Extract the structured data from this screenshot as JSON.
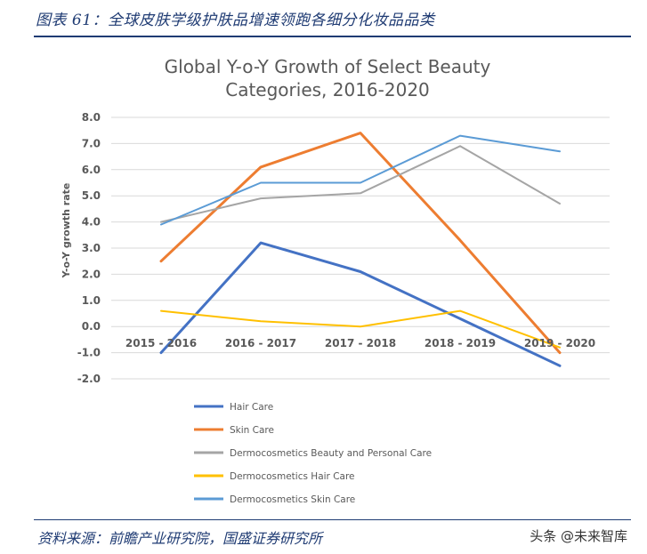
{
  "caption": "图表 61：全球皮肤学级护肤品增速领跑各细分化妆品品类",
  "source": "资料来源：前瞻产业研究院，国盛证券研究所",
  "watermark": "头条 @未来智库",
  "colors": {
    "Hair Care": "#4472c4",
    "Skin Care": "#ed7d31",
    "Dermocosmetics Beauty and Personal Care": "#a5a5a5",
    "Dermocosmetics Hair Care": "#ffc000",
    "Dermocosmetics Skin Care": "#5b9bd5",
    "grid": "#d9d9d9",
    "text": "#595959"
  },
  "chart_data": {
    "type": "line",
    "title_lines": [
      "Global Y-o-Y Growth of Select Beauty",
      "Categories, 2016-2020"
    ],
    "ylabel": "Y-o-Y growth rate",
    "xlabel": "",
    "ylim": [
      -2.0,
      8.0
    ],
    "ytick_step": 1.0,
    "ytick_labels": [
      "8.0",
      "7.0",
      "6.0",
      "5.0",
      "4.0",
      "3.0",
      "2.0",
      "1.0",
      "0.0",
      "-1.0",
      "-2.0"
    ],
    "grid": true,
    "legend_position": "bottom",
    "categories": [
      "2015 - 2016",
      "2016 - 2017",
      "2017 - 2018",
      "2018 - 2019",
      "2019 - 2020"
    ],
    "series": [
      {
        "name": "Hair Care",
        "values": [
          -1.0,
          3.2,
          2.1,
          0.3,
          -1.5
        ]
      },
      {
        "name": "Skin Care",
        "values": [
          2.5,
          6.1,
          7.4,
          3.3,
          -1.0
        ]
      },
      {
        "name": "Dermocosmetics Beauty and Personal Care",
        "values": [
          4.0,
          4.9,
          5.1,
          6.9,
          4.7
        ]
      },
      {
        "name": "Dermocosmetics Hair Care",
        "values": [
          0.6,
          0.2,
          0.0,
          0.6,
          -0.8
        ]
      },
      {
        "name": "Dermocosmetics Skin Care",
        "values": [
          3.9,
          5.5,
          5.5,
          7.3,
          6.7
        ]
      }
    ]
  }
}
